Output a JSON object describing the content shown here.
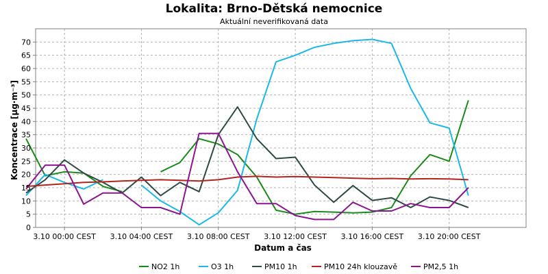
{
  "chart_data": {
    "type": "line",
    "title": "Lokalita: Brno-Dětská nemocnice",
    "subtitle": "Aktuální neverifikovaná data",
    "xlabel": "Datum a čas",
    "ylabel": "Koncentrace [µg·m⁻³]",
    "ylim": [
      0,
      75
    ],
    "yticks": [
      0,
      5,
      10,
      15,
      20,
      25,
      30,
      35,
      40,
      45,
      50,
      55,
      60,
      65,
      70
    ],
    "xlim": [
      -1.5,
      24
    ],
    "xticks": [
      {
        "x": 0,
        "label": "3.10 00:00 CEST"
      },
      {
        "x": 4,
        "label": "3.10 04:00 CEST"
      },
      {
        "x": 8,
        "label": "3.10 08:00 CEST"
      },
      {
        "x": 12,
        "label": "3.10 12:00 CEST"
      },
      {
        "x": 16,
        "label": "3.10 16:00 CEST"
      },
      {
        "x": 20,
        "label": "3.10 20:00 CEST"
      }
    ],
    "grid": true,
    "legend_position": "bottom",
    "x": [
      -2,
      -1,
      0,
      1,
      2,
      3,
      4,
      5,
      6,
      7,
      8,
      9,
      10,
      11,
      12,
      13,
      14,
      15,
      16,
      17,
      18,
      19,
      20,
      21
    ],
    "series": [
      {
        "name": "NO2 1h",
        "color": "#1a8a1a",
        "values": [
          33.5,
          19.5,
          21,
          20.5,
          15.5,
          13.5,
          null,
          21,
          24.5,
          33.5,
          31.5,
          27.5,
          19,
          6.5,
          5,
          6,
          5.8,
          5.5,
          5.8,
          7.5,
          19.5,
          27.5,
          25,
          48
        ]
      },
      {
        "name": "O3 1h",
        "color": "#1ab8e8",
        "values": [
          12,
          20,
          17,
          14.5,
          18,
          null,
          16,
          10,
          6,
          1,
          5.5,
          14,
          41,
          62.5,
          65,
          68,
          69.5,
          70.5,
          71,
          69.5,
          52.5,
          39.5,
          37.5,
          12
        ]
      },
      {
        "name": "PM10 1h",
        "color": "#2e4a44",
        "values": [
          13,
          18,
          25.5,
          20.5,
          17,
          13,
          19,
          12,
          17,
          13.5,
          35,
          45.5,
          33.5,
          26,
          26.5,
          16,
          9.5,
          15.8,
          10.2,
          11.2,
          7.5,
          11.5,
          10.2,
          7.5
        ]
      },
      {
        "name": "PM10 24h klouzavě",
        "color": "#b3231e",
        "values": [
          15.5,
          16,
          16.5,
          17,
          17.2,
          17.5,
          17.8,
          18,
          17.8,
          17.5,
          18,
          19,
          19.3,
          19,
          19.2,
          19,
          18.8,
          18.6,
          18.4,
          18.5,
          18.3,
          18.4,
          18.3,
          18
        ]
      },
      {
        "name": "PM2,5 1h",
        "color": "#8b1490",
        "values": [
          14.5,
          23.5,
          23.5,
          8.8,
          13,
          13,
          7.5,
          7.5,
          5,
          35.5,
          35.5,
          21,
          9,
          9,
          4.5,
          3,
          3,
          9.5,
          6.2,
          6.2,
          9,
          7.5,
          7.5,
          15
        ]
      }
    ]
  }
}
